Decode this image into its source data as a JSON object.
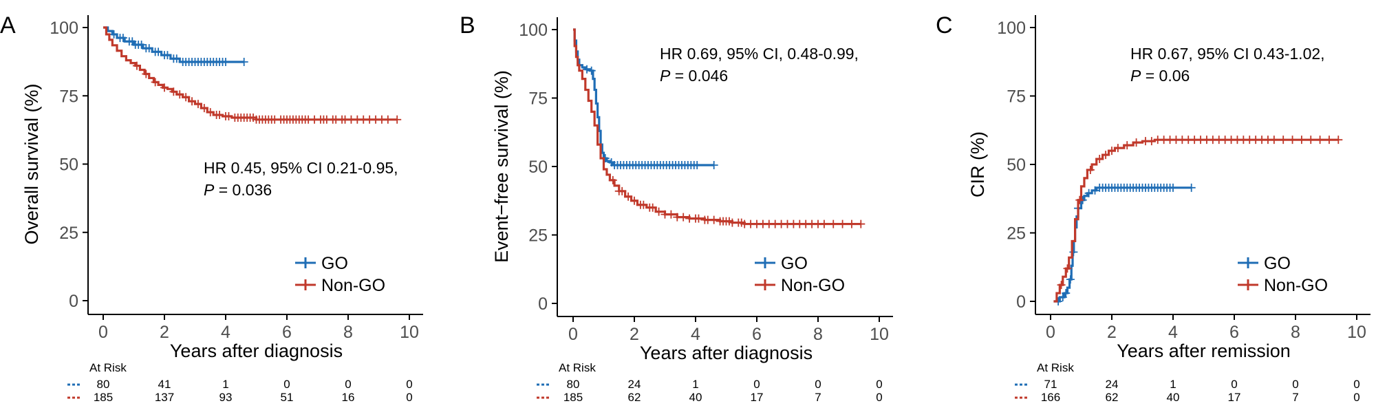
{
  "chart_data": [
    {
      "type": "line",
      "subtype": "kaplan-meier",
      "panel_label": "A",
      "xlabel": "Years after diagnosis",
      "ylabel": "Overall survival (%)",
      "xlim": [
        0,
        10
      ],
      "ylim": [
        0,
        100
      ],
      "xticks": [
        0,
        2,
        4,
        6,
        8,
        10
      ],
      "yticks": [
        0,
        25,
        50,
        75,
        100
      ],
      "annotation_line1": "HR 0.45, 95% CI 0.21-0.95,",
      "annotation_p_symbol": "P",
      "annotation_p_value": " = 0.036",
      "legend_position": "bottom-right",
      "grid": false,
      "series": [
        {
          "name": "GO",
          "color": "#1f6db5",
          "x": [
            0,
            0.15,
            0.3,
            0.45,
            0.7,
            1.0,
            1.3,
            1.6,
            1.9,
            2.2,
            2.5,
            4.6
          ],
          "y": [
            100,
            98.7,
            97.5,
            96.2,
            94.9,
            93.7,
            92.4,
            91.1,
            89.9,
            88.6,
            87.4,
            87.4
          ],
          "censor_x": [
            0.35,
            0.55,
            0.65,
            0.85,
            0.95,
            1.05,
            1.15,
            1.25,
            1.4,
            1.5,
            1.7,
            1.8,
            2.0,
            2.1,
            2.3,
            2.4,
            2.6,
            2.7,
            2.8,
            2.9,
            3.0,
            3.1,
            3.2,
            3.3,
            3.4,
            3.5,
            3.6,
            3.7,
            3.8,
            3.9,
            4.0,
            4.6
          ]
        },
        {
          "name": "Non-GO",
          "color": "#c0392b",
          "x": [
            0,
            0.1,
            0.2,
            0.3,
            0.45,
            0.6,
            0.75,
            0.9,
            1.05,
            1.2,
            1.35,
            1.5,
            1.65,
            1.8,
            1.95,
            2.1,
            2.25,
            2.4,
            2.6,
            2.8,
            3.0,
            3.2,
            3.4,
            3.6,
            3.9,
            4.2,
            5.0,
            9.6
          ],
          "y": [
            100,
            97.5,
            95.5,
            93.5,
            91.5,
            89.5,
            88,
            87,
            86,
            84.5,
            83,
            81.5,
            80,
            79,
            78,
            77.5,
            76.5,
            75.5,
            74.5,
            73,
            72,
            70.5,
            69,
            68,
            67.5,
            67,
            66.3,
            66.3
          ],
          "censor_x": [
            1.1,
            1.4,
            1.7,
            2.0,
            2.3,
            2.5,
            2.7,
            2.9,
            3.1,
            3.3,
            3.5,
            3.7,
            3.8,
            4.0,
            4.1,
            4.3,
            4.4,
            4.5,
            4.6,
            4.7,
            4.8,
            4.9,
            5.0,
            5.1,
            5.2,
            5.3,
            5.4,
            5.5,
            5.6,
            5.8,
            5.9,
            6.0,
            6.1,
            6.2,
            6.3,
            6.4,
            6.5,
            6.6,
            6.7,
            6.9,
            7.1,
            7.2,
            7.3,
            7.5,
            7.6,
            7.8,
            7.9,
            8.1,
            8.3,
            8.5,
            8.7,
            8.9,
            9.1,
            9.3,
            9.6
          ]
        }
      ],
      "at_risk": {
        "title": "At Risk",
        "rows": [
          {
            "series": "GO",
            "values": [
              "80",
              "41",
              "1",
              "0",
              "0",
              "0"
            ]
          },
          {
            "series": "Non-GO",
            "values": [
              "185",
              "137",
              "93",
              "51",
              "16",
              "0"
            ]
          }
        ]
      }
    },
    {
      "type": "line",
      "subtype": "kaplan-meier",
      "panel_label": "B",
      "xlabel": "Years after diagnosis",
      "ylabel": "Event−free survival (%)",
      "xlim": [
        0,
        10
      ],
      "ylim": [
        0,
        100
      ],
      "xticks": [
        0,
        2,
        4,
        6,
        8,
        10
      ],
      "yticks": [
        0,
        25,
        50,
        75,
        100
      ],
      "annotation_line1": "HR 0.69, 95% CI, 0.48-0.99,",
      "annotation_p_symbol": "P",
      "annotation_p_value": " = 0.046",
      "legend_position": "bottom-right",
      "grid": false,
      "series": [
        {
          "name": "GO",
          "color": "#1f6db5",
          "x": [
            0,
            0.05,
            0.1,
            0.15,
            0.2,
            0.3,
            0.4,
            0.55,
            0.65,
            0.7,
            0.75,
            0.8,
            0.85,
            0.9,
            0.95,
            1.0,
            1.1,
            1.2,
            1.3,
            4.6
          ],
          "y": [
            100,
            96,
            92,
            89,
            87,
            86.2,
            85.5,
            85,
            82,
            78,
            73,
            68,
            63,
            58,
            55,
            53,
            52,
            51.5,
            50.5,
            50.5
          ],
          "censor_x": [
            0.45,
            0.6,
            1.05,
            1.25,
            1.35,
            1.45,
            1.55,
            1.65,
            1.75,
            1.85,
            1.95,
            2.05,
            2.15,
            2.25,
            2.35,
            2.45,
            2.55,
            2.65,
            2.75,
            2.85,
            2.95,
            3.05,
            3.15,
            3.25,
            3.35,
            3.45,
            3.55,
            3.65,
            3.75,
            3.85,
            3.95,
            4.05,
            4.6
          ]
        },
        {
          "name": "Non-GO",
          "color": "#c0392b",
          "x": [
            0,
            0.05,
            0.1,
            0.15,
            0.2,
            0.3,
            0.4,
            0.5,
            0.6,
            0.7,
            0.8,
            0.9,
            1.0,
            1.1,
            1.2,
            1.35,
            1.5,
            1.7,
            1.9,
            2.1,
            2.4,
            2.7,
            3.0,
            3.4,
            3.8,
            4.3,
            4.8,
            5.2,
            5.6,
            9.4
          ],
          "y": [
            100,
            94,
            90,
            87,
            85,
            82,
            78,
            74,
            70,
            65,
            58,
            53,
            49,
            47,
            45,
            43,
            41,
            39,
            37.5,
            36,
            35,
            33.5,
            32.5,
            31.5,
            31,
            30.5,
            30,
            29.5,
            29,
            29
          ],
          "censor_x": [
            1.3,
            1.5,
            1.6,
            1.8,
            2.0,
            2.2,
            2.3,
            2.5,
            2.6,
            2.8,
            3.0,
            3.2,
            3.4,
            3.6,
            3.8,
            4.0,
            4.1,
            4.3,
            4.4,
            4.6,
            4.8,
            4.9,
            5.0,
            5.1,
            5.2,
            5.4,
            5.5,
            5.6,
            5.8,
            6.0,
            6.2,
            6.4,
            6.6,
            6.8,
            7.0,
            7.2,
            7.4,
            7.6,
            7.8,
            8.0,
            8.2,
            8.5,
            8.8,
            9.1,
            9.4
          ]
        }
      ],
      "at_risk": {
        "title": "At Risk",
        "rows": [
          {
            "series": "GO",
            "values": [
              "80",
              "24",
              "1",
              "0",
              "0",
              "0"
            ]
          },
          {
            "series": "Non-GO",
            "values": [
              "185",
              "62",
              "40",
              "17",
              "7",
              "0"
            ]
          }
        ]
      }
    },
    {
      "type": "line",
      "subtype": "cumulative-incidence",
      "panel_label": "C",
      "xlabel": "Years after remission",
      "ylabel": "CIR (%)",
      "xlim": [
        0,
        10
      ],
      "ylim": [
        0,
        100
      ],
      "xticks": [
        0,
        2,
        4,
        6,
        8,
        10
      ],
      "yticks": [
        0,
        25,
        50,
        75,
        100
      ],
      "annotation_line1": "HR 0.67, 95% CI 0.43-1.02,",
      "annotation_p_symbol": "P",
      "annotation_p_value": " = 0.06",
      "legend_position": "bottom-right",
      "grid": false,
      "series": [
        {
          "name": "GO",
          "color": "#1f6db5",
          "x": [
            0.1,
            0.3,
            0.45,
            0.55,
            0.62,
            0.68,
            0.72,
            0.76,
            0.8,
            0.85,
            0.9,
            1.0,
            1.1,
            1.2,
            1.35,
            1.5,
            4.6
          ],
          "y": [
            0,
            1.5,
            3,
            5,
            8,
            13,
            18,
            22,
            27,
            31,
            34,
            37,
            38.5,
            39.5,
            40.5,
            41.5,
            41.5
          ],
          "censor_x": [
            0.25,
            0.4,
            0.5,
            0.65,
            0.75,
            0.9,
            1.05,
            1.25,
            1.45,
            1.6,
            1.7,
            1.8,
            1.9,
            2.0,
            2.1,
            2.2,
            2.3,
            2.4,
            2.5,
            2.6,
            2.7,
            2.8,
            2.9,
            3.0,
            3.1,
            3.2,
            3.3,
            3.4,
            3.5,
            3.6,
            3.7,
            3.8,
            3.9,
            4.0,
            4.6
          ]
        },
        {
          "name": "Non-GO",
          "color": "#c0392b",
          "x": [
            0.1,
            0.2,
            0.3,
            0.4,
            0.5,
            0.6,
            0.7,
            0.8,
            0.9,
            1.0,
            1.1,
            1.2,
            1.35,
            1.5,
            1.7,
            1.9,
            2.1,
            2.4,
            2.7,
            3.0,
            3.4,
            3.8,
            4.5,
            9.4
          ],
          "y": [
            0,
            3,
            6,
            9,
            12,
            16,
            22,
            30,
            37,
            42,
            45,
            48,
            50,
            52,
            53.5,
            55,
            56,
            57,
            58,
            58.5,
            59,
            59,
            59,
            59
          ],
          "censor_x": [
            0.35,
            0.55,
            0.95,
            1.3,
            1.6,
            1.8,
            2.0,
            2.2,
            2.5,
            2.8,
            3.1,
            3.3,
            3.5,
            3.7,
            3.9,
            4.1,
            4.3,
            4.5,
            4.7,
            4.9,
            5.1,
            5.3,
            5.5,
            5.7,
            5.9,
            6.1,
            6.3,
            6.5,
            6.7,
            6.9,
            7.1,
            7.3,
            7.6,
            7.9,
            8.2,
            8.5,
            8.8,
            9.1,
            9.4
          ]
        }
      ],
      "at_risk": {
        "title": "At Risk",
        "rows": [
          {
            "series": "GO",
            "values": [
              "71",
              "24",
              "1",
              "0",
              "0",
              "0"
            ]
          },
          {
            "series": "Non-GO",
            "values": [
              "166",
              "62",
              "40",
              "17",
              "7",
              "0"
            ]
          }
        ]
      }
    }
  ]
}
